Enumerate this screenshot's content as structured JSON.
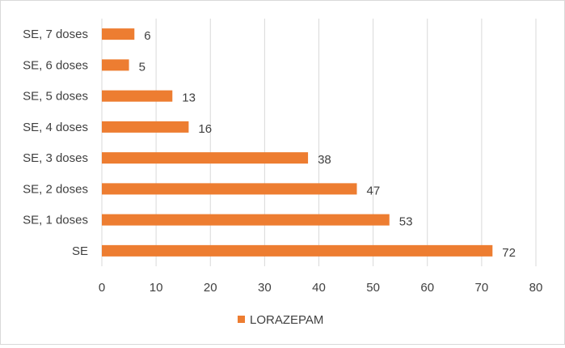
{
  "chart_data": {
    "type": "bar",
    "orientation": "horizontal",
    "title": "",
    "xlabel": "",
    "ylabel": "",
    "categories": [
      "SE",
      "SE, 1 doses",
      "SE, 2 doses",
      "SE, 3 doses",
      "SE, 4 doses",
      "SE, 5 doses",
      "SE, 6 doses",
      "SE, 7 doses"
    ],
    "series": [
      {
        "name": "LORAZEPAM",
        "color": "#ED7D31",
        "values": [
          72,
          53,
          47,
          38,
          16,
          13,
          5,
          6
        ]
      }
    ],
    "xlim": [
      0,
      80
    ],
    "xticks": [
      0,
      10,
      20,
      30,
      40,
      50,
      60,
      70,
      80
    ],
    "grid": "vertical",
    "legend": {
      "position": "bottom",
      "entries": [
        "LORAZEPAM"
      ]
    },
    "data_labels": true
  }
}
